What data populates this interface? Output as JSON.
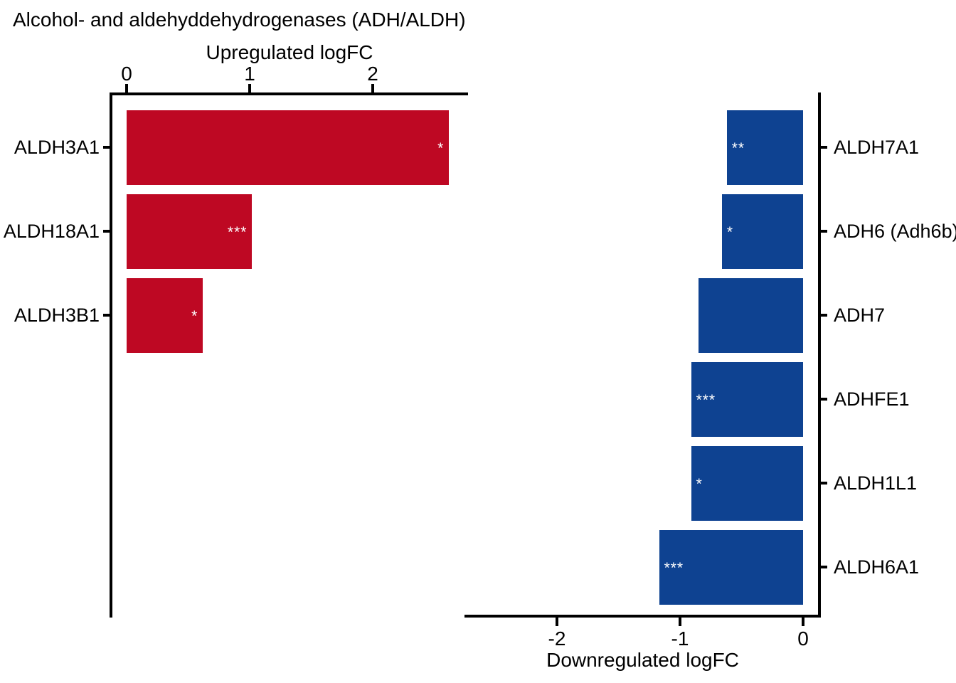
{
  "title": "Alcohol- and aldehyddehydrogenases (ADH/ALDH)",
  "colors": {
    "upregulated_bar": "#BE0823",
    "downregulated_bar": "#0E4291",
    "axis": "#000000",
    "significance_text": "#FFFFFF",
    "background": "#FFFFFF"
  },
  "chart_data": {
    "type": "bar",
    "orientation": "horizontal",
    "title": "Alcohol- and aldehyddehydrogenases (ADH/ALDH)",
    "grid": false,
    "panels": [
      {
        "name": "upregulated",
        "axis_label": "Upregulated logFC",
        "axis_position": "top",
        "labels_side": "left",
        "ticks": [
          0,
          1,
          2
        ],
        "xlim": [
          0,
          2.77
        ],
        "bar_color": "#BE0823",
        "bars": [
          {
            "gene": "ALDH3A1",
            "logFC": 2.62,
            "significance": "*"
          },
          {
            "gene": "ALDH18A1",
            "logFC": 1.02,
            "significance": "***"
          },
          {
            "gene": "ALDH3B1",
            "logFC": 0.62,
            "significance": "*"
          }
        ]
      },
      {
        "name": "downregulated",
        "axis_label": "Downregulated logFC",
        "axis_position": "bottom",
        "labels_side": "right",
        "ticks": [
          -2,
          -1,
          0
        ],
        "xlim": [
          -2.77,
          0
        ],
        "bar_color": "#0E4291",
        "bars": [
          {
            "gene": "ALDH7A1",
            "logFC": -0.62,
            "significance": "**"
          },
          {
            "gene": "ADH6 (Adh6b)",
            "logFC": -0.66,
            "significance": "*"
          },
          {
            "gene": "ADH7",
            "logFC": -0.85,
            "significance": ""
          },
          {
            "gene": "ADHFE1",
            "logFC": -0.91,
            "significance": "***"
          },
          {
            "gene": "ALDH1L1",
            "logFC": -0.91,
            "significance": "*"
          },
          {
            "gene": "ALDH6A1",
            "logFC": -1.17,
            "significance": "***"
          }
        ]
      }
    ]
  }
}
